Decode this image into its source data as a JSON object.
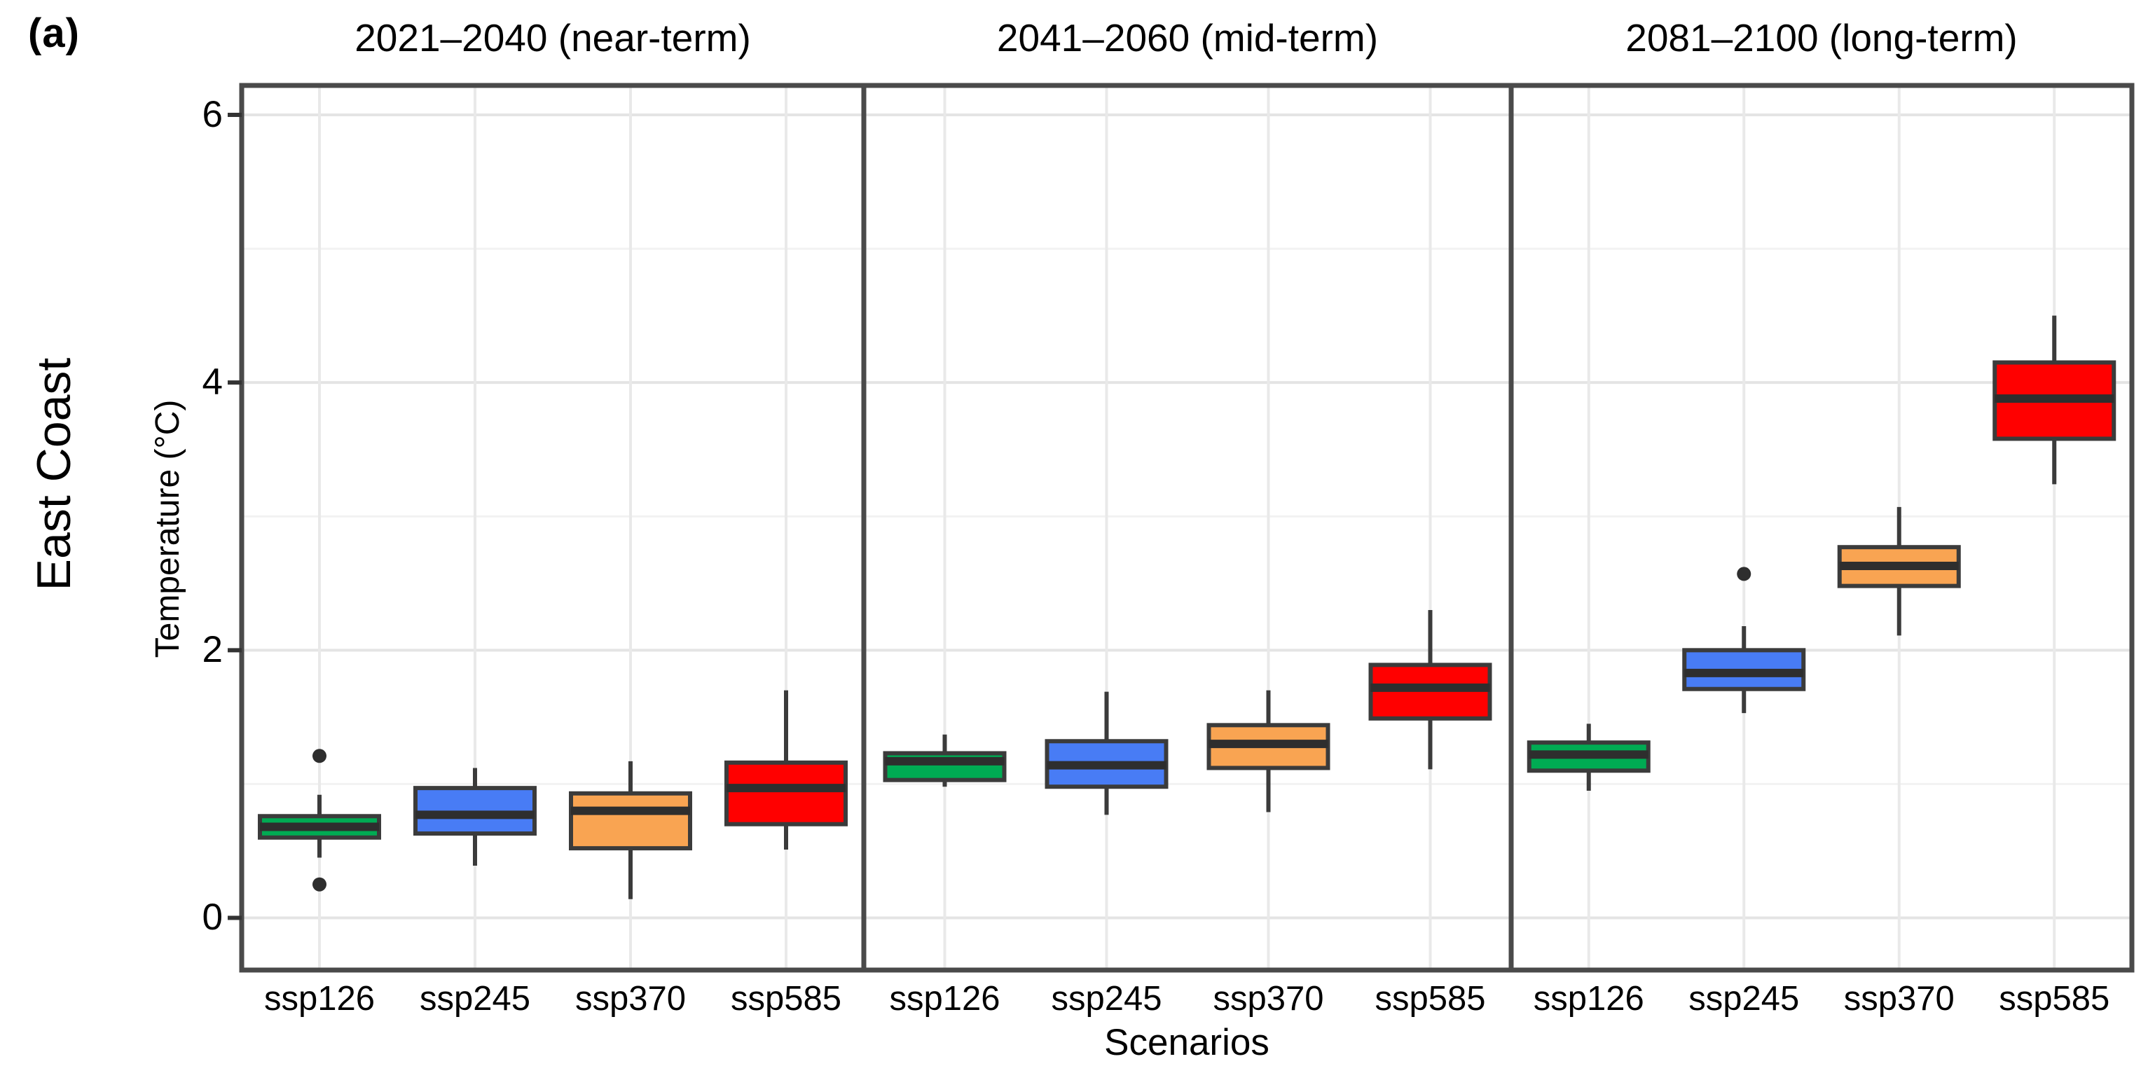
{
  "figure_label": "(a)",
  "row_label": "East Coast",
  "chart_data": {
    "type": "boxplot",
    "title": "",
    "xlabel": "Scenarios",
    "ylabel": "Temperature (°C)",
    "ylim": [
      -0.39,
      6.22
    ],
    "y_major_ticks": [
      0,
      2,
      4,
      6
    ],
    "y_minor_gridlines": [
      1,
      3,
      5
    ],
    "grid": "on",
    "legend": "none",
    "categories": [
      "ssp126",
      "ssp245",
      "ssp370",
      "ssp585"
    ],
    "series_colors": {
      "ssp126": "#00AB53",
      "ssp245": "#487CF5",
      "ssp370": "#F9A452",
      "ssp585": "#FF0000"
    },
    "facets": [
      {
        "title": "2021–2040 (near-term)",
        "boxes": [
          {
            "scenario": "ssp126",
            "whisker_low": 0.45,
            "q1": 0.6,
            "median": 0.68,
            "q3": 0.76,
            "whisker_high": 0.92,
            "outliers": [
              1.21,
              0.25
            ]
          },
          {
            "scenario": "ssp245",
            "whisker_low": 0.39,
            "q1": 0.63,
            "median": 0.77,
            "q3": 0.97,
            "whisker_high": 1.12,
            "outliers": []
          },
          {
            "scenario": "ssp370",
            "whisker_low": 0.14,
            "q1": 0.52,
            "median": 0.8,
            "q3": 0.93,
            "whisker_high": 1.17,
            "outliers": []
          },
          {
            "scenario": "ssp585",
            "whisker_low": 0.51,
            "q1": 0.7,
            "median": 0.97,
            "q3": 1.16,
            "whisker_high": 1.7,
            "outliers": []
          }
        ]
      },
      {
        "title": "2041–2060 (mid-term)",
        "boxes": [
          {
            "scenario": "ssp126",
            "whisker_low": 0.98,
            "q1": 1.03,
            "median": 1.17,
            "q3": 1.23,
            "whisker_high": 1.37,
            "outliers": []
          },
          {
            "scenario": "ssp245",
            "whisker_low": 0.77,
            "q1": 0.98,
            "median": 1.14,
            "q3": 1.32,
            "whisker_high": 1.69,
            "outliers": []
          },
          {
            "scenario": "ssp370",
            "whisker_low": 0.79,
            "q1": 1.12,
            "median": 1.3,
            "q3": 1.44,
            "whisker_high": 1.7,
            "outliers": []
          },
          {
            "scenario": "ssp585",
            "whisker_low": 1.11,
            "q1": 1.49,
            "median": 1.72,
            "q3": 1.89,
            "whisker_high": 2.3,
            "outliers": []
          }
        ]
      },
      {
        "title": "2081–2100 (long-term)",
        "boxes": [
          {
            "scenario": "ssp126",
            "whisker_low": 0.95,
            "q1": 1.1,
            "median": 1.22,
            "q3": 1.31,
            "whisker_high": 1.45,
            "outliers": []
          },
          {
            "scenario": "ssp245",
            "whisker_low": 1.53,
            "q1": 1.71,
            "median": 1.83,
            "q3": 2.0,
            "whisker_high": 2.18,
            "outliers": [
              2.57
            ]
          },
          {
            "scenario": "ssp370",
            "whisker_low": 2.11,
            "q1": 2.48,
            "median": 2.63,
            "q3": 2.77,
            "whisker_high": 3.07,
            "outliers": []
          },
          {
            "scenario": "ssp585",
            "whisker_low": 3.24,
            "q1": 3.58,
            "median": 3.88,
            "q3": 4.15,
            "whisker_high": 4.5,
            "outliers": []
          }
        ]
      }
    ]
  },
  "styles": {
    "box_border": "#3B3B3B",
    "median_line": "#2E2E2E",
    "whisker": "#3B3B3B",
    "outlier_dot": "#2E2E2E",
    "panel_border": "#4A4A4A",
    "tick_mark": "#333333",
    "grid_major": "#E4E4E4",
    "grid_minor": "#F2F2F2",
    "grid_vertical": "#E9E9E9",
    "background": "#FFFFFF"
  }
}
